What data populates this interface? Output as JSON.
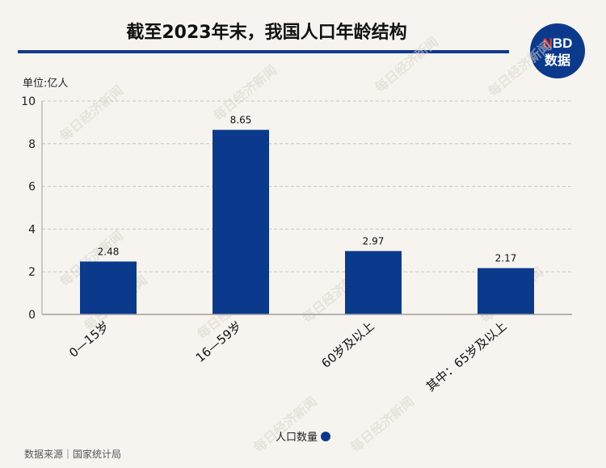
{
  "header": {
    "title": "截至2023年末，我国人口年龄结构",
    "unit": "单位:亿人",
    "logo_top": "NBD",
    "logo_bottom": "数据"
  },
  "footer": {
    "source": "数据来源｜国家统计局"
  },
  "watermark": "每日经济新闻",
  "colors": {
    "bar": "#0b3a8c",
    "accent": "#0b3a8c",
    "logo_bg": "#0b3a8c",
    "logo_n": "#e8352d"
  },
  "chart_data": {
    "type": "bar",
    "title": "截至2023年末，我国人口年龄结构",
    "ylabel": "单位:亿人",
    "xlabel": "",
    "categories": [
      "0—15岁",
      "16—59岁",
      "60岁及以上",
      "其中：65岁及以上"
    ],
    "series": [
      {
        "name": "人口数量",
        "values": [
          2.48,
          8.65,
          2.97,
          2.17
        ]
      }
    ],
    "data_labels": [
      "2.48",
      "8.65",
      "2.97",
      "2.17"
    ],
    "ylim": [
      0,
      10
    ],
    "yticks": [
      0,
      2,
      4,
      6,
      8,
      10
    ],
    "grid": true,
    "legend_position": "bottom-center"
  }
}
